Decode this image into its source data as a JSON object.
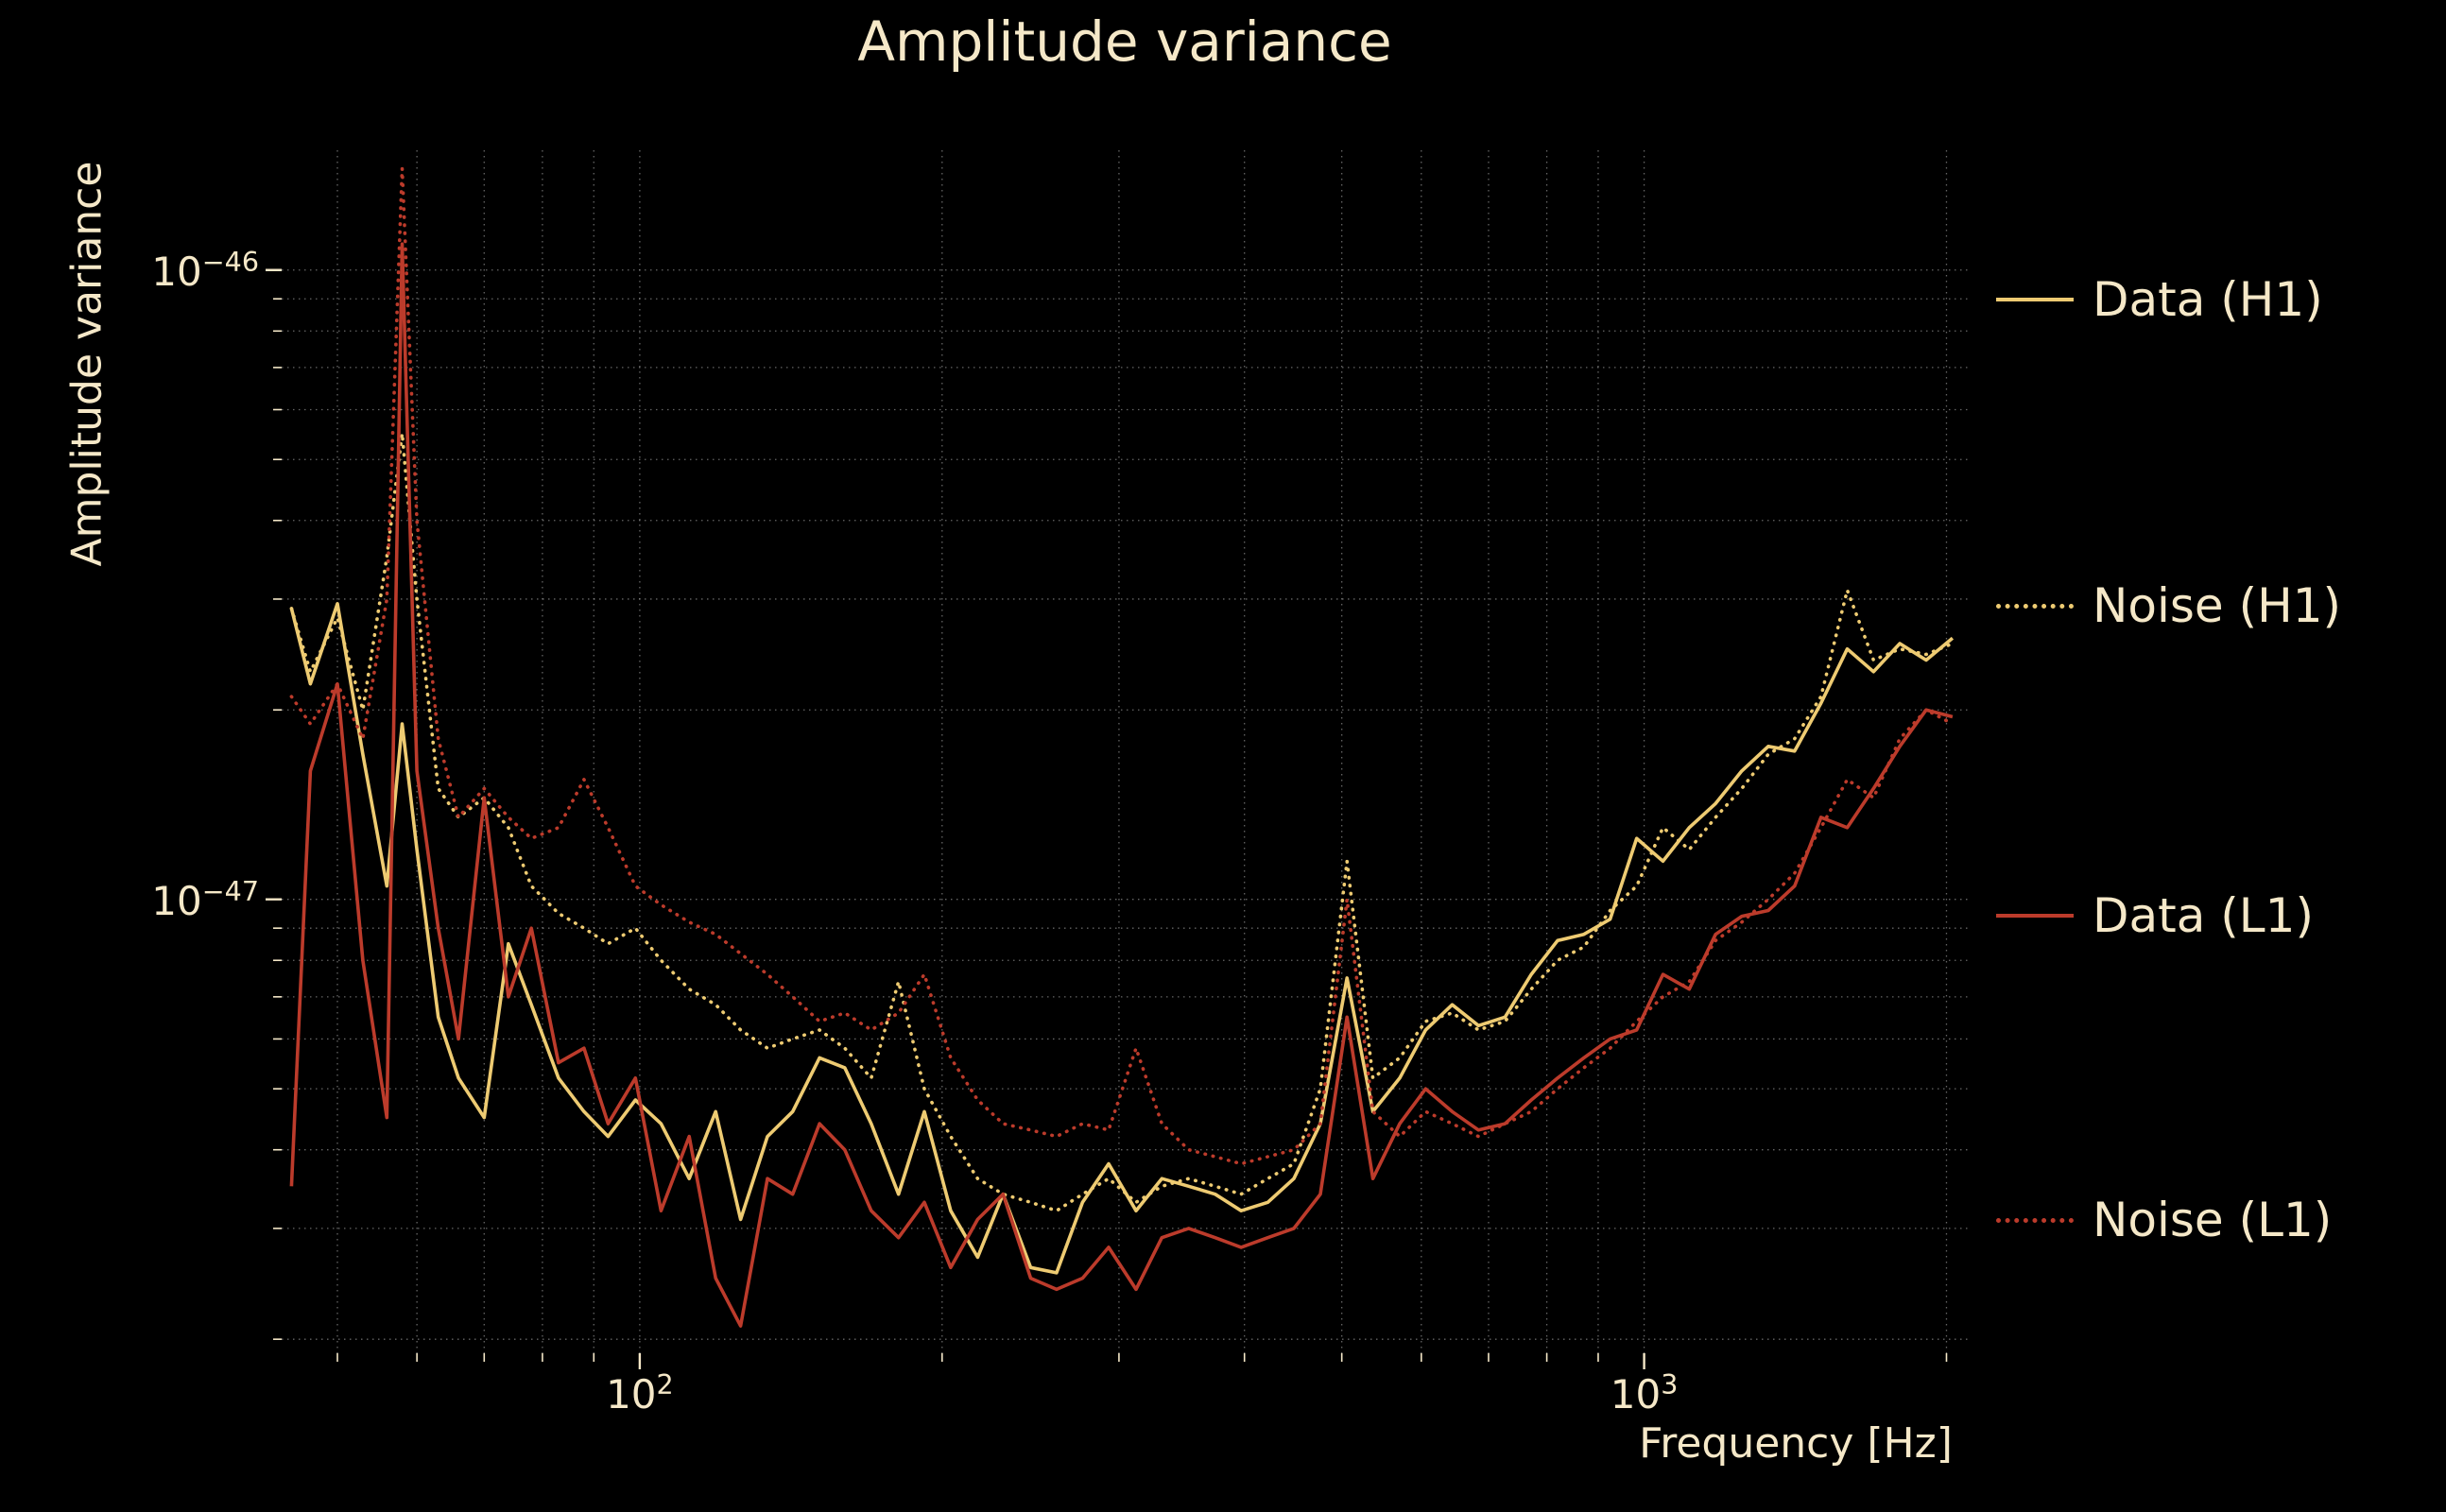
{
  "colors": {
    "background": "#000000",
    "text": "#f5e8c8",
    "grid": "#b9b9b9",
    "h1": "#eecb72",
    "l1": "#bc3b2b"
  },
  "chart_data": {
    "type": "line",
    "title": "Amplitude variance",
    "xlabel": "Frequency [Hz]",
    "ylabel": "Amplitude variance",
    "xscale": "log",
    "yscale": "log",
    "xlim": [
      44,
      2100
    ],
    "ylim": [
      1.9e-48,
      1.55e-46
    ],
    "grid": true,
    "legend_position": "right-outside",
    "xticks": [
      {
        "base": "10",
        "exp": "2",
        "value": 100
      },
      {
        "base": "10",
        "exp": "3",
        "value": 1000
      }
    ],
    "yticks": [
      {
        "base": "10",
        "exp": "−46",
        "value": 1e-46
      },
      {
        "base": "10",
        "exp": "−47",
        "value": 1e-47
      }
    ],
    "x": [
      45,
      47,
      50,
      53,
      56,
      58,
      60,
      63,
      66,
      70,
      74,
      78,
      83,
      88,
      93,
      99,
      105,
      112,
      119,
      126,
      134,
      142,
      151,
      160,
      170,
      181,
      192,
      204,
      217,
      230,
      245,
      260,
      276,
      293,
      312,
      331,
      352,
      374,
      397,
      422,
      448,
      476,
      506,
      537,
      571,
      606,
      644,
      684,
      727,
      772,
      820,
      871,
      925,
      983,
      1044,
      1109,
      1178,
      1251,
      1329,
      1412,
      1500,
      1593,
      1692,
      1797,
      1909,
      2028
    ],
    "series": [
      {
        "name": "Data (H1)",
        "style": "solid",
        "color": "#eecb72",
        "values": [
          2.9e-47,
          2.2e-47,
          2.95e-47,
          1.7e-47,
          1.05e-47,
          1.9e-47,
          1.2e-47,
          6.5e-48,
          5.2e-48,
          4.5e-48,
          8.5e-48,
          6.8e-48,
          5.2e-48,
          4.6e-48,
          4.2e-48,
          4.8e-48,
          4.4e-48,
          3.6e-48,
          4.6e-48,
          3.1e-48,
          4.2e-48,
          4.6e-48,
          5.6e-48,
          5.4e-48,
          4.4e-48,
          3.4e-48,
          4.6e-48,
          3.2e-48,
          2.7e-48,
          3.4e-48,
          2.6e-48,
          2.55e-48,
          3.3e-48,
          3.8e-48,
          3.2e-48,
          3.6e-48,
          3.5e-48,
          3.4e-48,
          3.2e-48,
          3.3e-48,
          3.6e-48,
          4.4e-48,
          7.5e-48,
          4.6e-48,
          5.2e-48,
          6.2e-48,
          6.8e-48,
          6.3e-48,
          6.5e-48,
          7.6e-48,
          8.6e-48,
          8.8e-48,
          9.3e-48,
          1.25e-47,
          1.15e-47,
          1.3e-47,
          1.42e-47,
          1.6e-47,
          1.75e-47,
          1.72e-47,
          2.05e-47,
          2.5e-47,
          2.3e-47,
          2.55e-47,
          2.4e-47,
          2.6e-47
        ]
      },
      {
        "name": "Noise (H1)",
        "style": "dotted",
        "color": "#eecb72",
        "values": [
          2.9e-47,
          2.3e-47,
          2.8e-47,
          2e-47,
          3.5e-47,
          5.5e-47,
          3e-47,
          1.5e-47,
          1.35e-47,
          1.45e-47,
          1.3e-47,
          1.05e-47,
          9.5e-48,
          9e-48,
          8.5e-48,
          9e-48,
          8e-48,
          7.2e-48,
          6.8e-48,
          6.2e-48,
          5.8e-48,
          6e-48,
          6.2e-48,
          5.8e-48,
          5.2e-48,
          7.4e-48,
          5e-48,
          4.2e-48,
          3.6e-48,
          3.4e-48,
          3.3e-48,
          3.2e-48,
          3.4e-48,
          3.6e-48,
          3.3e-48,
          3.5e-48,
          3.6e-48,
          3.5e-48,
          3.4e-48,
          3.6e-48,
          3.8e-48,
          5e-48,
          1.15e-47,
          5.2e-48,
          5.6e-48,
          6.4e-48,
          6.6e-48,
          6.2e-48,
          6.4e-48,
          7.2e-48,
          8e-48,
          8.4e-48,
          9.6e-48,
          1.05e-47,
          1.3e-47,
          1.2e-47,
          1.35e-47,
          1.5e-47,
          1.7e-47,
          1.8e-47,
          2.1e-47,
          3.1e-47,
          2.4e-47,
          2.5e-47,
          2.45e-47,
          2.55e-47
        ]
      },
      {
        "name": "Data (L1)",
        "style": "solid",
        "color": "#bc3b2b",
        "values": [
          3.5e-48,
          1.6e-47,
          2.2e-47,
          8e-48,
          4.5e-48,
          1.1e-46,
          1.6e-47,
          9e-48,
          6e-48,
          1.45e-47,
          7e-48,
          9e-48,
          5.5e-48,
          5.8e-48,
          4.4e-48,
          5.2e-48,
          3.2e-48,
          4.2e-48,
          2.5e-48,
          2.1e-48,
          3.6e-48,
          3.4e-48,
          4.4e-48,
          4e-48,
          3.2e-48,
          2.9e-48,
          3.3e-48,
          2.6e-48,
          3.1e-48,
          3.4e-48,
          2.5e-48,
          2.4e-48,
          2.5e-48,
          2.8e-48,
          2.4e-48,
          2.9e-48,
          3e-48,
          2.9e-48,
          2.8e-48,
          2.9e-48,
          3e-48,
          3.4e-48,
          6.5e-48,
          3.6e-48,
          4.4e-48,
          5e-48,
          4.6e-48,
          4.3e-48,
          4.4e-48,
          4.8e-48,
          5.2e-48,
          5.6e-48,
          6e-48,
          6.2e-48,
          7.6e-48,
          7.2e-48,
          8.8e-48,
          9.4e-48,
          9.6e-48,
          1.05e-47,
          1.35e-47,
          1.3e-47,
          1.5e-47,
          1.75e-47,
          2e-47,
          1.95e-47
        ]
      },
      {
        "name": "Noise (L1)",
        "style": "dotted",
        "color": "#bc3b2b",
        "values": [
          2.1e-47,
          1.9e-47,
          2.2e-47,
          1.8e-47,
          3e-47,
          1.45e-46,
          4e-47,
          1.8e-47,
          1.35e-47,
          1.5e-47,
          1.35e-47,
          1.25e-47,
          1.3e-47,
          1.55e-47,
          1.3e-47,
          1.05e-47,
          9.8e-48,
          9.2e-48,
          8.8e-48,
          8.2e-48,
          7.6e-48,
          7e-48,
          6.4e-48,
          6.6e-48,
          6.2e-48,
          6.6e-48,
          7.6e-48,
          5.6e-48,
          4.8e-48,
          4.4e-48,
          4.3e-48,
          4.2e-48,
          4.4e-48,
          4.3e-48,
          5.8e-48,
          4.4e-48,
          4e-48,
          3.9e-48,
          3.8e-48,
          3.9e-48,
          4e-48,
          4.4e-48,
          1e-47,
          4.6e-48,
          4.2e-48,
          4.6e-48,
          4.4e-48,
          4.2e-48,
          4.4e-48,
          4.6e-48,
          5e-48,
          5.4e-48,
          5.8e-48,
          6.4e-48,
          7e-48,
          7.4e-48,
          8.6e-48,
          9.2e-48,
          1e-47,
          1.1e-47,
          1.3e-47,
          1.55e-47,
          1.45e-47,
          1.8e-47,
          2e-47,
          1.9e-47
        ]
      }
    ]
  }
}
